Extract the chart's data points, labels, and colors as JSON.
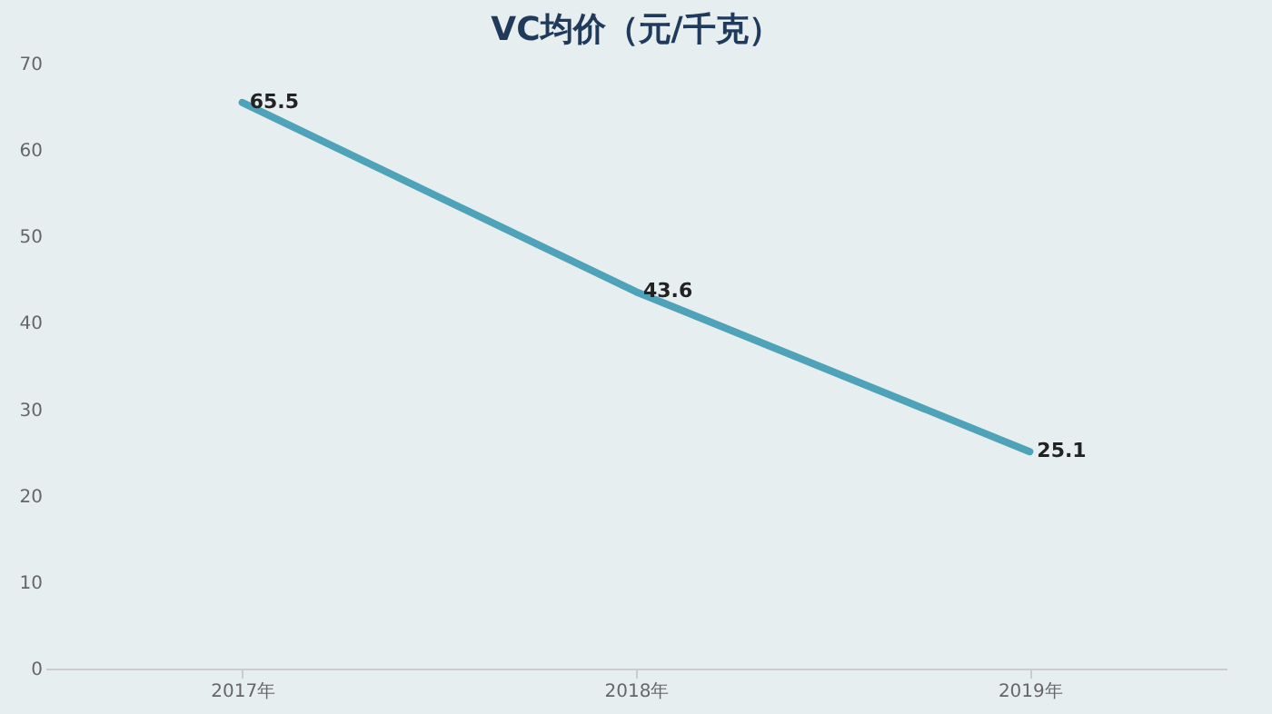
{
  "chart_data": {
    "type": "line",
    "title": "VC均价（元/千克）",
    "categories": [
      "2017年",
      "2018年",
      "2019年"
    ],
    "series": [
      {
        "color": "#4ea3b9",
        "values": [
          65.5,
          43.6,
          25.1
        ]
      }
    ],
    "ylim": [
      0,
      70
    ],
    "yticks": [
      0,
      10,
      20,
      30,
      40,
      50,
      60,
      70
    ],
    "grid": false,
    "data_labels": true,
    "marker": "none",
    "line_style": "solid"
  }
}
